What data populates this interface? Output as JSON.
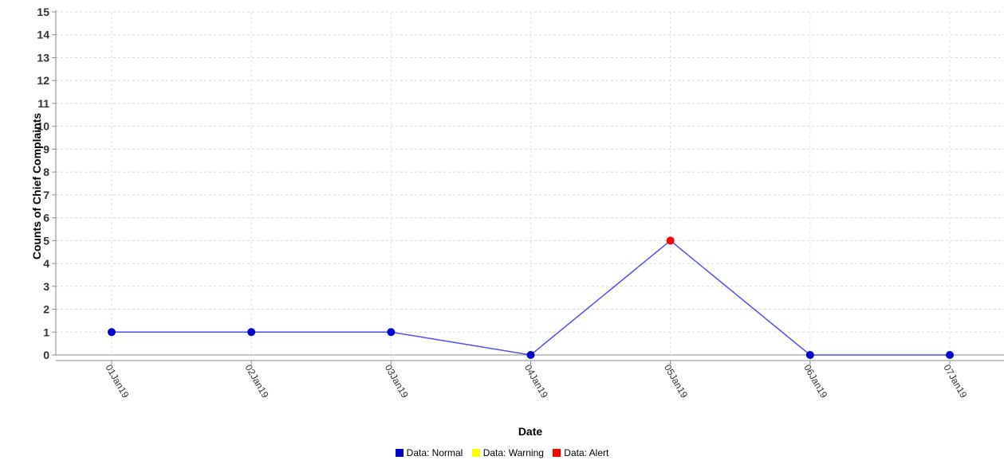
{
  "chart_data": {
    "type": "line",
    "title": "",
    "xlabel": "Date",
    "ylabel": "Counts of Chief Complaints",
    "categories": [
      "01Jan19",
      "02Jan19",
      "03Jan19",
      "04Jan19",
      "05Jan19",
      "06Jan19",
      "07Jan19"
    ],
    "ylim": [
      0,
      15
    ],
    "yticks": [
      0,
      1,
      2,
      3,
      4,
      5,
      6,
      7,
      8,
      9,
      10,
      11,
      12,
      13,
      14,
      15
    ],
    "grid": true,
    "legend_position": "bottom",
    "series": [
      {
        "values": [
          1,
          1,
          1,
          0,
          5,
          0,
          0
        ],
        "status": [
          "normal",
          "normal",
          "normal",
          "normal",
          "alert",
          "normal",
          "normal"
        ],
        "line_color": "#4f4ff5"
      }
    ],
    "legend": [
      {
        "key": "normal",
        "label": "Data: Normal",
        "color": "#0000cc"
      },
      {
        "key": "warning",
        "label": "Data: Warning",
        "color": "#ffff00"
      },
      {
        "key": "alert",
        "label": "Data: Alert",
        "color": "#ff0000"
      }
    ]
  }
}
